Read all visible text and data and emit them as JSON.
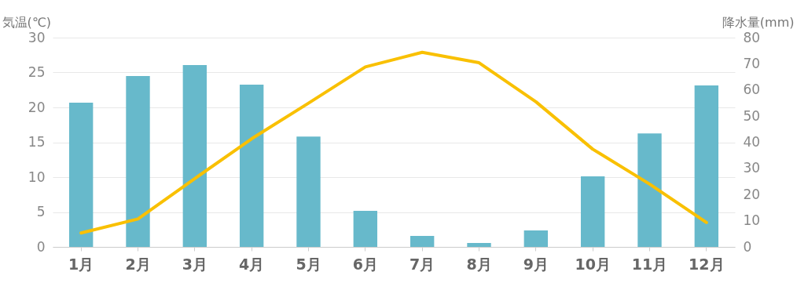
{
  "chart_data": {
    "type": "bar",
    "ylabel": "気温(℃)",
    "y2label": "降水量(mm)",
    "categories": [
      "1月",
      "2月",
      "3月",
      "4月",
      "5月",
      "6月",
      "7月",
      "8月",
      "9月",
      "10月",
      "11月",
      "12月"
    ],
    "series": [
      {
        "type": "bar",
        "axis": "y2",
        "color": "#67b9cb",
        "values": [
          55.1,
          65.3,
          69.5,
          62,
          42.2,
          13.8,
          4.2,
          1.5,
          6.3,
          27,
          43.4,
          61.7
        ]
      },
      {
        "type": "line",
        "axis": "y",
        "color": "#f9c000",
        "values": [
          2.0,
          4.0,
          9.8,
          15.5,
          20.6,
          25.8,
          27.9,
          26.4,
          20.8,
          14.0,
          9.0,
          3.5
        ]
      }
    ],
    "ylim": [
      0,
      30
    ],
    "yticks": [
      0,
      5,
      10,
      15,
      20,
      25,
      30
    ],
    "y2lim": [
      0,
      80
    ],
    "y2ticks": [
      0,
      10,
      20,
      30,
      40,
      50,
      60,
      70,
      80
    ],
    "grid": "y"
  }
}
